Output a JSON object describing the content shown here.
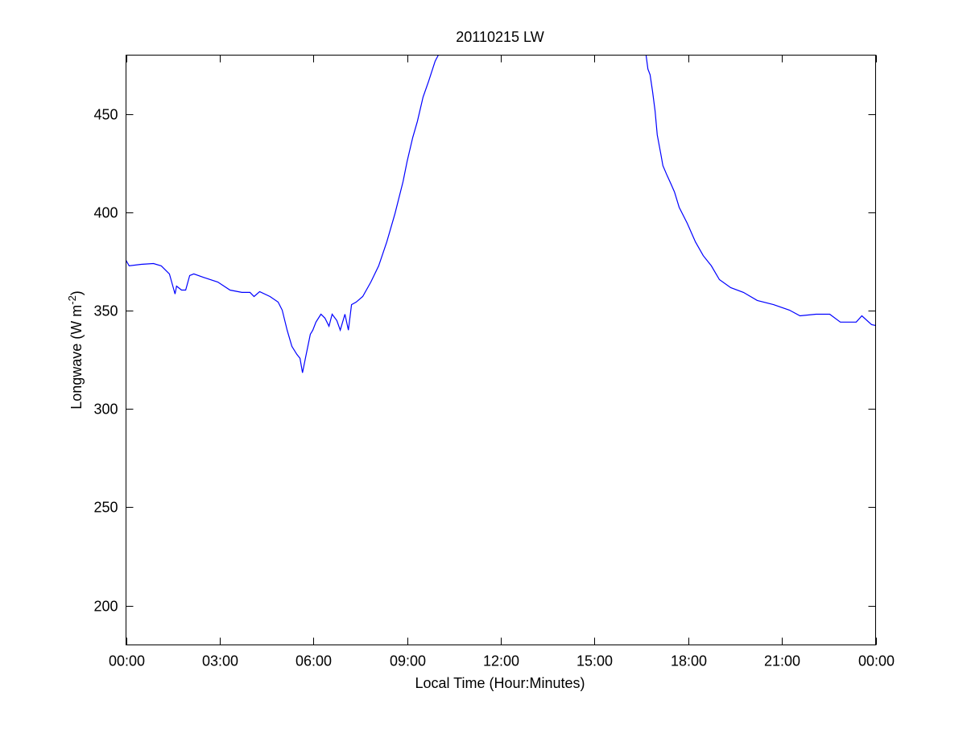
{
  "chart_data": {
    "type": "line",
    "title": "20110215 LW",
    "xlabel": "Local Time (Hour:Minutes)",
    "ylabel": "Longwave (W m-2)",
    "ylabel_parts": [
      "Longwave (W m",
      "-2",
      ")"
    ],
    "xlim_hours": [
      0,
      24
    ],
    "ylim": [
      180,
      480
    ],
    "x_ticks_hours": [
      0,
      3,
      6,
      9,
      12,
      15,
      18,
      21,
      24
    ],
    "x_tick_labels": [
      "00:00",
      "03:00",
      "06:00",
      "09:00",
      "12:00",
      "15:00",
      "18:00",
      "21:00",
      "00:00"
    ],
    "y_ticks": [
      200,
      250,
      300,
      350,
      400,
      450
    ],
    "y_tick_labels": [
      "200",
      "250",
      "300",
      "350",
      "400",
      "450"
    ],
    "grid": false,
    "line_color": "#0000ff",
    "series": [
      {
        "x_hours": [
          0,
          0.1,
          0.49,
          0.88,
          1.13,
          1.39,
          1.57,
          1.62,
          1.78,
          1.91,
          2.04,
          2.17,
          2.55,
          2.94,
          3.33,
          3.71,
          3.97,
          4.1,
          4.28,
          4.61,
          4.87,
          5.0,
          5.16,
          5.31,
          5.47,
          5.57,
          5.65,
          5.77,
          5.9,
          5.98,
          6.08,
          6.24,
          6.37,
          6.5,
          6.6,
          6.75,
          6.86,
          7.01,
          7.12,
          7.22,
          7.37,
          7.58,
          7.84,
          8.09,
          8.35,
          8.61,
          8.87,
          9.0,
          9.18,
          9.33,
          9.51,
          9.69,
          9.9,
          10.0,
          null,
          16.65,
          16.71,
          16.78,
          16.86,
          16.94,
          17.01,
          17.12,
          17.19,
          17.32,
          17.45,
          17.56,
          17.71,
          17.97,
          18.23,
          18.48,
          18.74,
          19.0,
          19.36,
          19.77,
          20.21,
          20.73,
          21.24,
          21.58,
          22.09,
          22.53,
          22.87,
          23.38,
          23.56,
          23.87,
          24.0
        ],
        "y": [
          375.6,
          372.8,
          373.6,
          374,
          372.8,
          368.7,
          358.5,
          362.5,
          360.5,
          360.5,
          367.9,
          368.7,
          366.6,
          364.6,
          360.5,
          359.3,
          359.3,
          357.2,
          359.7,
          357.2,
          354.4,
          350.3,
          340,
          331.9,
          327.8,
          325.8,
          318.4,
          327.8,
          338,
          340.1,
          344.2,
          348.2,
          346.2,
          342.1,
          348.2,
          345,
          340.1,
          348.2,
          340.1,
          353.1,
          354.4,
          357.2,
          364.6,
          372.8,
          385,
          399.3,
          415.7,
          425.9,
          438.1,
          446.3,
          458.6,
          466.8,
          477,
          480,
          null,
          480,
          472.9,
          470,
          461.4,
          451.6,
          439.4,
          430,
          423.8,
          418.9,
          414.4,
          410.4,
          402.6,
          394.4,
          385,
          378,
          372.8,
          365.8,
          361.7,
          359.3,
          355.2,
          353.1,
          350.3,
          347.4,
          348.2,
          348.2,
          344.2,
          344.2,
          347.4,
          342.9,
          342.5
        ]
      }
    ]
  }
}
